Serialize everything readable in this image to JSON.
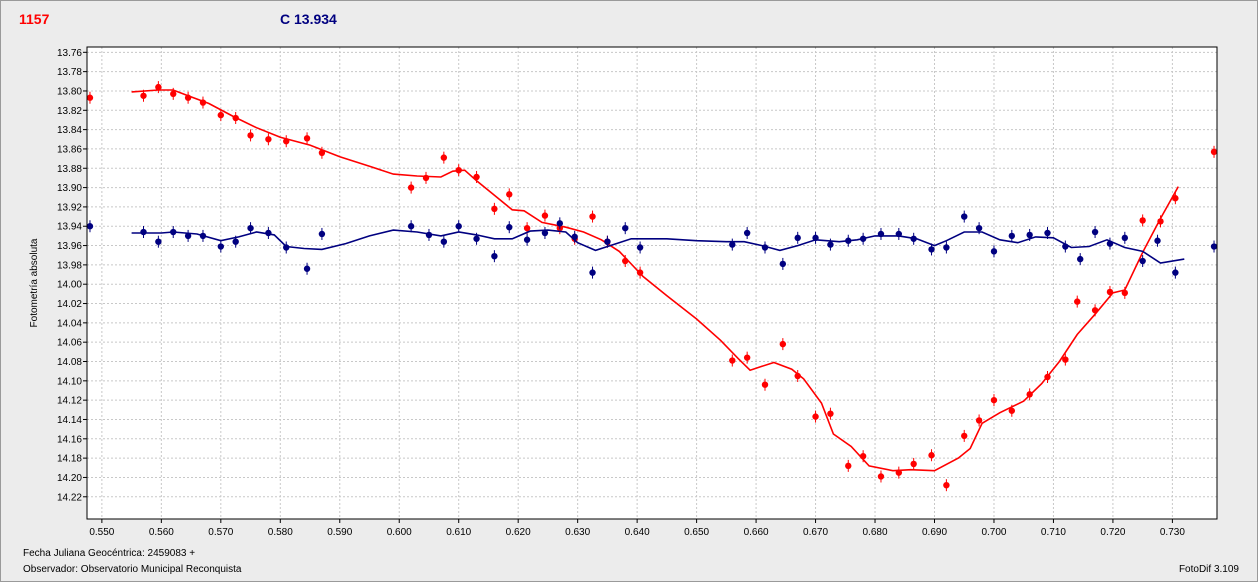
{
  "header": {
    "star_label": "1157",
    "comparison_label": "C 13.934"
  },
  "footer": {
    "date_label": "Fecha Juliana Geocéntrica: 2459083 +",
    "observer_label": "Observador: Observatorio Municipal Reconquista",
    "version_label": "FotoDif 3.109"
  },
  "colors": {
    "variable": "#ff0000",
    "comparison": "#000080",
    "plot_background": "#ffffff",
    "grid": "#c8c8c8"
  },
  "chart_data": {
    "type": "scatter",
    "ylabel": "Fotometría absoluta",
    "xlabel": "",
    "xlim": [
      0.5475,
      0.7375
    ],
    "ylim": [
      14.243,
      13.7545
    ],
    "y_inverted": true,
    "grid": true,
    "x_ticks": [
      "0.550",
      "0.560",
      "0.570",
      "0.580",
      "0.590",
      "0.600",
      "0.610",
      "0.620",
      "0.630",
      "0.640",
      "0.650",
      "0.660",
      "0.670",
      "0.680",
      "0.690",
      "0.700",
      "0.710",
      "0.720",
      "0.730"
    ],
    "y_ticks": [
      "13.76",
      "13.78",
      "13.80",
      "13.82",
      "13.84",
      "13.86",
      "13.88",
      "13.90",
      "13.92",
      "13.94",
      "13.96",
      "13.98",
      "14.00",
      "14.02",
      "14.04",
      "14.06",
      "14.08",
      "14.10",
      "14.12",
      "14.14",
      "14.16",
      "14.18",
      "14.20",
      "14.22"
    ],
    "series": [
      {
        "color": "#ff0000",
        "points": [
          [
            0.548,
            13.807
          ],
          [
            0.557,
            13.805
          ],
          [
            0.5595,
            13.796
          ],
          [
            0.562,
            13.803
          ],
          [
            0.5645,
            13.807
          ],
          [
            0.567,
            13.812
          ],
          [
            0.57,
            13.825
          ],
          [
            0.5725,
            13.828
          ],
          [
            0.575,
            13.846
          ],
          [
            0.578,
            13.85
          ],
          [
            0.581,
            13.852
          ],
          [
            0.5845,
            13.849
          ],
          [
            0.587,
            13.864
          ],
          [
            0.602,
            13.9
          ],
          [
            0.6045,
            13.89
          ],
          [
            0.6075,
            13.869
          ],
          [
            0.61,
            13.882
          ],
          [
            0.613,
            13.889
          ],
          [
            0.616,
            13.922
          ],
          [
            0.6185,
            13.907
          ],
          [
            0.6215,
            13.942
          ],
          [
            0.6245,
            13.929
          ],
          [
            0.627,
            13.942
          ],
          [
            0.6295,
            13.953
          ],
          [
            0.6325,
            13.93
          ],
          [
            0.635,
            13.956
          ],
          [
            0.638,
            13.976
          ],
          [
            0.6405,
            13.988
          ],
          [
            0.656,
            14.079
          ],
          [
            0.6585,
            14.076
          ],
          [
            0.6615,
            14.104
          ],
          [
            0.6645,
            14.062
          ],
          [
            0.667,
            14.095
          ],
          [
            0.67,
            14.137
          ],
          [
            0.6725,
            14.134
          ],
          [
            0.6755,
            14.188
          ],
          [
            0.678,
            14.178
          ],
          [
            0.681,
            14.199
          ],
          [
            0.684,
            14.195
          ],
          [
            0.6865,
            14.186
          ],
          [
            0.6895,
            14.177
          ],
          [
            0.692,
            14.208
          ],
          [
            0.695,
            14.157
          ],
          [
            0.6975,
            14.141
          ],
          [
            0.7,
            14.12
          ],
          [
            0.703,
            14.131
          ],
          [
            0.706,
            14.114
          ],
          [
            0.709,
            14.096
          ],
          [
            0.712,
            14.078
          ],
          [
            0.714,
            14.018
          ],
          [
            0.717,
            14.027
          ],
          [
            0.7195,
            14.008
          ],
          [
            0.722,
            14.009
          ],
          [
            0.725,
            13.934
          ],
          [
            0.728,
            13.935
          ],
          [
            0.7305,
            13.911
          ],
          [
            0.737,
            13.863
          ]
        ],
        "curve": [
          [
            0.555,
            13.801
          ],
          [
            0.5595,
            13.799
          ],
          [
            0.562,
            13.799
          ],
          [
            0.5645,
            13.805
          ],
          [
            0.568,
            13.813
          ],
          [
            0.572,
            13.826
          ],
          [
            0.576,
            13.838
          ],
          [
            0.58,
            13.848
          ],
          [
            0.585,
            13.856
          ],
          [
            0.59,
            13.868
          ],
          [
            0.595,
            13.878
          ],
          [
            0.599,
            13.886
          ],
          [
            0.603,
            13.888
          ],
          [
            0.607,
            13.889
          ],
          [
            0.609,
            13.883
          ],
          [
            0.611,
            13.882
          ],
          [
            0.613,
            13.893
          ],
          [
            0.616,
            13.908
          ],
          [
            0.619,
            13.923
          ],
          [
            0.621,
            13.924
          ],
          [
            0.624,
            13.936
          ],
          [
            0.628,
            13.941
          ],
          [
            0.631,
            13.946
          ],
          [
            0.634,
            13.954
          ],
          [
            0.637,
            13.966
          ],
          [
            0.641,
            13.992
          ],
          [
            0.645,
            14.012
          ],
          [
            0.65,
            14.036
          ],
          [
            0.654,
            14.058
          ],
          [
            0.657,
            14.077
          ],
          [
            0.659,
            14.089
          ],
          [
            0.661,
            14.085
          ],
          [
            0.663,
            14.081
          ],
          [
            0.666,
            14.088
          ],
          [
            0.668,
            14.098
          ],
          [
            0.671,
            14.123
          ],
          [
            0.673,
            14.155
          ],
          [
            0.676,
            14.168
          ],
          [
            0.679,
            14.188
          ],
          [
            0.683,
            14.193
          ],
          [
            0.686,
            14.192
          ],
          [
            0.69,
            14.193
          ],
          [
            0.694,
            14.18
          ],
          [
            0.696,
            14.17
          ],
          [
            0.698,
            14.144
          ],
          [
            0.701,
            14.133
          ],
          [
            0.705,
            14.121
          ],
          [
            0.708,
            14.103
          ],
          [
            0.711,
            14.08
          ],
          [
            0.714,
            14.052
          ],
          [
            0.717,
            14.031
          ],
          [
            0.72,
            14.009
          ],
          [
            0.722,
            14.006
          ],
          [
            0.725,
            13.967
          ],
          [
            0.728,
            13.932
          ],
          [
            0.731,
            13.899
          ]
        ]
      },
      {
        "color": "#000080",
        "points": [
          [
            0.548,
            13.94
          ],
          [
            0.557,
            13.946
          ],
          [
            0.5595,
            13.956
          ],
          [
            0.562,
            13.946
          ],
          [
            0.5645,
            13.95
          ],
          [
            0.567,
            13.95
          ],
          [
            0.57,
            13.961
          ],
          [
            0.5725,
            13.956
          ],
          [
            0.575,
            13.942
          ],
          [
            0.578,
            13.947
          ],
          [
            0.581,
            13.962
          ],
          [
            0.5845,
            13.984
          ],
          [
            0.587,
            13.948
          ],
          [
            0.602,
            13.94
          ],
          [
            0.605,
            13.949
          ],
          [
            0.6075,
            13.956
          ],
          [
            0.61,
            13.94
          ],
          [
            0.613,
            13.953
          ],
          [
            0.616,
            13.971
          ],
          [
            0.6185,
            13.941
          ],
          [
            0.6215,
            13.954
          ],
          [
            0.6245,
            13.947
          ],
          [
            0.627,
            13.937
          ],
          [
            0.6295,
            13.951
          ],
          [
            0.6325,
            13.988
          ],
          [
            0.635,
            13.956
          ],
          [
            0.638,
            13.942
          ],
          [
            0.6405,
            13.962
          ],
          [
            0.656,
            13.959
          ],
          [
            0.6585,
            13.947
          ],
          [
            0.6615,
            13.962
          ],
          [
            0.6645,
            13.979
          ],
          [
            0.667,
            13.952
          ],
          [
            0.67,
            13.952
          ],
          [
            0.6725,
            13.959
          ],
          [
            0.6755,
            13.955
          ],
          [
            0.678,
            13.953
          ],
          [
            0.681,
            13.948
          ],
          [
            0.684,
            13.948
          ],
          [
            0.6865,
            13.953
          ],
          [
            0.6895,
            13.964
          ],
          [
            0.692,
            13.962
          ],
          [
            0.695,
            13.93
          ],
          [
            0.6975,
            13.942
          ],
          [
            0.7,
            13.966
          ],
          [
            0.703,
            13.95
          ],
          [
            0.706,
            13.949
          ],
          [
            0.709,
            13.947
          ],
          [
            0.712,
            13.961
          ],
          [
            0.7145,
            13.974
          ],
          [
            0.717,
            13.946
          ],
          [
            0.7195,
            13.958
          ],
          [
            0.722,
            13.952
          ],
          [
            0.725,
            13.976
          ],
          [
            0.7275,
            13.955
          ],
          [
            0.7305,
            13.988
          ],
          [
            0.737,
            13.961
          ]
        ],
        "curve": [
          [
            0.555,
            13.947
          ],
          [
            0.56,
            13.947
          ],
          [
            0.562,
            13.946
          ],
          [
            0.566,
            13.948
          ],
          [
            0.57,
            13.955
          ],
          [
            0.573,
            13.951
          ],
          [
            0.576,
            13.946
          ],
          [
            0.579,
            13.949
          ],
          [
            0.581,
            13.961
          ],
          [
            0.584,
            13.963
          ],
          [
            0.587,
            13.964
          ],
          [
            0.591,
            13.958
          ],
          [
            0.595,
            13.95
          ],
          [
            0.599,
            13.944
          ],
          [
            0.603,
            13.946
          ],
          [
            0.607,
            13.95
          ],
          [
            0.61,
            13.946
          ],
          [
            0.613,
            13.949
          ],
          [
            0.616,
            13.953
          ],
          [
            0.619,
            13.953
          ],
          [
            0.622,
            13.945
          ],
          [
            0.625,
            13.944
          ],
          [
            0.628,
            13.946
          ],
          [
            0.63,
            13.957
          ],
          [
            0.633,
            13.965
          ],
          [
            0.636,
            13.959
          ],
          [
            0.639,
            13.953
          ],
          [
            0.645,
            13.953
          ],
          [
            0.65,
            13.955
          ],
          [
            0.655,
            13.956
          ],
          [
            0.658,
            13.956
          ],
          [
            0.661,
            13.96
          ],
          [
            0.664,
            13.965
          ],
          [
            0.667,
            13.96
          ],
          [
            0.67,
            13.954
          ],
          [
            0.674,
            13.956
          ],
          [
            0.677,
            13.954
          ],
          [
            0.68,
            13.95
          ],
          [
            0.684,
            13.95
          ],
          [
            0.687,
            13.953
          ],
          [
            0.69,
            13.96
          ],
          [
            0.692,
            13.955
          ],
          [
            0.695,
            13.946
          ],
          [
            0.698,
            13.946
          ],
          [
            0.701,
            13.954
          ],
          [
            0.704,
            13.957
          ],
          [
            0.707,
            13.951
          ],
          [
            0.71,
            13.952
          ],
          [
            0.713,
            13.962
          ],
          [
            0.716,
            13.961
          ],
          [
            0.719,
            13.954
          ],
          [
            0.722,
            13.962
          ],
          [
            0.725,
            13.966
          ],
          [
            0.728,
            13.978
          ],
          [
            0.732,
            13.974
          ]
        ]
      }
    ]
  }
}
